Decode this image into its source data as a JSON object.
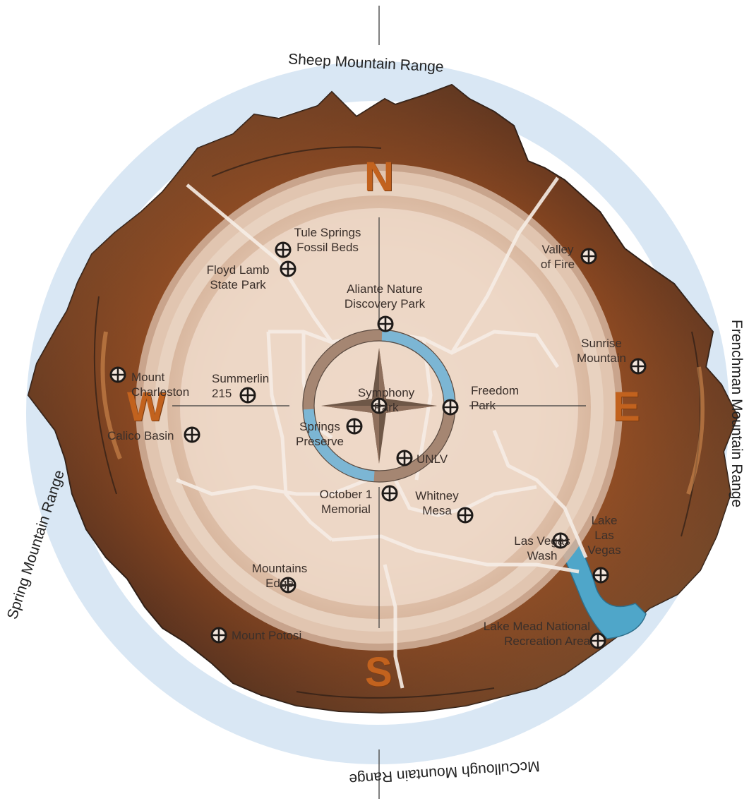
{
  "ranges": {
    "north": "Sheep Mountain Range",
    "east": "Frenchman Mountain Range",
    "south": "McCullough Mountain Range",
    "west": "Spring Mountain Range"
  },
  "cardinals": {
    "n": "N",
    "e": "E",
    "s": "S",
    "w": "W"
  },
  "places": [
    "Tule Springs\nFossil Beds",
    "Floyd Lamb\nState Park",
    "Aliante Nature\nDiscovery Park",
    "Valley\nof Fire",
    "Mount\nCharleston",
    "Summerlin\n215",
    "Sunrise\nMountain",
    "Symphony\nPark",
    "Freedom\nPark",
    "Calico Basin",
    "Springs\nPreserve",
    "UNLV",
    "October 1\nMemorial",
    "Whitney\nMesa",
    "Lake\nLas\nVegas",
    "Las Vegas\nWash",
    "Mountains\nEdge",
    "Mount Potosi",
    "Lake Mead National\nRecreation Area"
  ],
  "colors": {
    "accent_orange": "#c2621e",
    "ring_blue": "#d9e7f4",
    "water_blue": "#4fa6c9",
    "rock_brown": "#8a4a22"
  },
  "icons": {
    "place_marker": "crosshair-circle-icon",
    "center": "compass-rose-icon"
  }
}
